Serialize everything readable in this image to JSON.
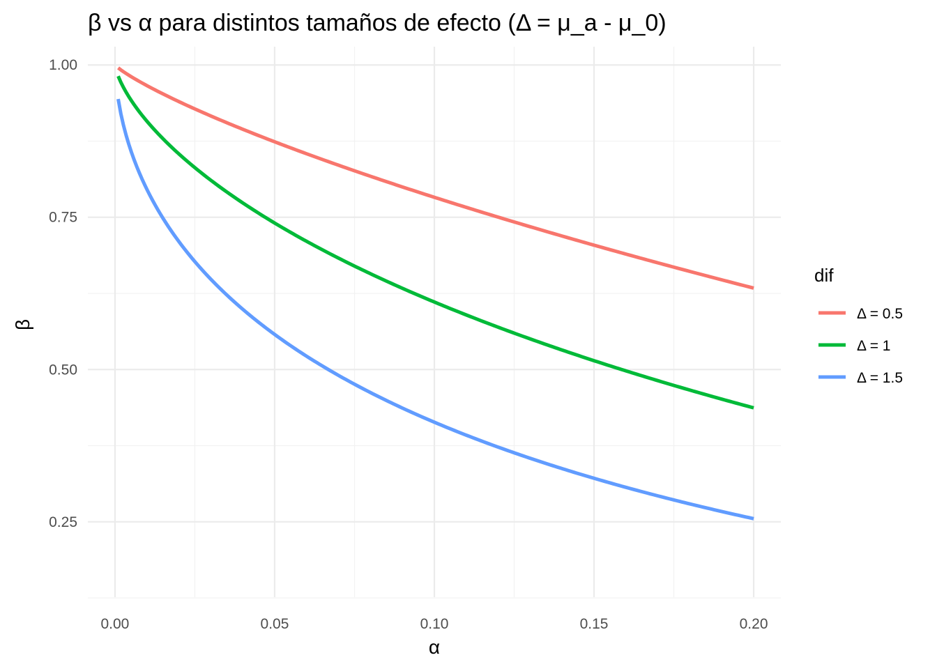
{
  "chart_data": {
    "type": "line",
    "title": "β vs α para distintos tamaños de efecto (Δ = μ_a - μ_0)",
    "xlabel": "α",
    "ylabel": "β",
    "xlim": [
      -0.0085,
      0.2085
    ],
    "ylim": [
      0.1262,
      1.03
    ],
    "x_ticks": [
      0.0,
      0.05,
      0.1,
      0.15,
      0.2
    ],
    "x_tick_labels": [
      "0.00",
      "0.05",
      "0.10",
      "0.15",
      "0.20"
    ],
    "x_minor_ticks": [
      0.025,
      0.075,
      0.125,
      0.175
    ],
    "y_ticks": [
      0.25,
      0.5,
      0.75,
      1.0
    ],
    "y_tick_labels": [
      "0.25",
      "0.50",
      "0.75",
      "1.00"
    ],
    "y_minor_ticks": [
      0.375,
      0.625,
      0.875,
      0.125
    ],
    "grid": true,
    "legend": {
      "title": "dif",
      "position": "right"
    },
    "series": [
      {
        "name": "Δ = 0.5",
        "color": "#F8766D",
        "effect": 0.5
      },
      {
        "name": "Δ = 1",
        "color": "#00BA38",
        "effect": 1.0
      },
      {
        "name": "Δ = 1.5",
        "color": "#619CFF",
        "effect": 1.5
      }
    ],
    "x": [
      0.001,
      0.002,
      0.005,
      0.01,
      0.02,
      0.03,
      0.05,
      0.075,
      0.1,
      0.125,
      0.15,
      0.175,
      0.2
    ]
  }
}
